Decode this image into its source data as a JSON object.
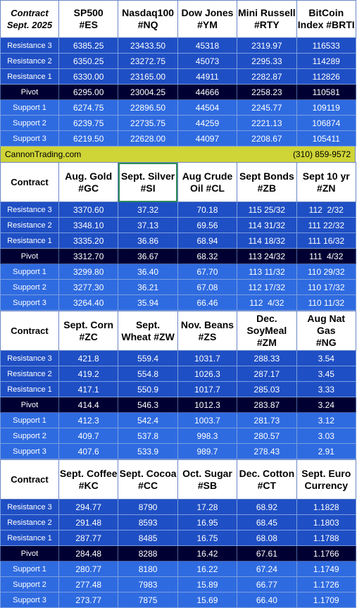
{
  "banner": {
    "site": "CannonTrading.com",
    "phone": "(310) 859-9572"
  },
  "sections": [
    {
      "label": [
        "Contract",
        "Sept. 2025"
      ],
      "italic": true,
      "headers": [
        [
          "SP500",
          "#ES"
        ],
        [
          "Nasdaq100",
          "#NQ"
        ],
        [
          "Dow Jones",
          "#YM"
        ],
        [
          "Mini Russell",
          "#RTY"
        ],
        [
          "BitCoin",
          "Index #BRTI"
        ]
      ],
      "rows": [
        {
          "label": "Resistance 3",
          "kind": "res",
          "values": [
            "6385.25",
            "23433.50",
            "45318",
            "2319.97",
            "116533"
          ]
        },
        {
          "label": "Resistance 2",
          "kind": "res",
          "values": [
            "6350.25",
            "23272.75",
            "45073",
            "2295.33",
            "114289"
          ]
        },
        {
          "label": "Resistance 1",
          "kind": "res",
          "values": [
            "6330.00",
            "23165.00",
            "44911",
            "2282.87",
            "112826"
          ]
        },
        {
          "label": "Pivot",
          "kind": "piv",
          "values": [
            "6295.00",
            "23004.25",
            "44666",
            "2258.23",
            "110581"
          ]
        },
        {
          "label": "Support 1",
          "kind": "sup",
          "values": [
            "6274.75",
            "22896.50",
            "44504",
            "2245.77",
            "109119"
          ]
        },
        {
          "label": "Support 2",
          "kind": "sup",
          "values": [
            "6239.75",
            "22735.75",
            "44259",
            "2221.13",
            "106874"
          ]
        },
        {
          "label": "Support 3",
          "kind": "sup",
          "values": [
            "6219.50",
            "22628.00",
            "44097",
            "2208.67",
            "105411"
          ]
        }
      ]
    },
    {
      "label": [
        "Contract"
      ],
      "italic": false,
      "highlight": 1,
      "headers": [
        [
          "Aug. Gold",
          "#GC"
        ],
        [
          "Sept. Silver",
          "#SI"
        ],
        [
          "Aug Crude",
          "Oil #CL"
        ],
        [
          "Sept Bonds",
          "#ZB"
        ],
        [
          "Sept 10 yr",
          "#ZN"
        ]
      ],
      "rows": [
        {
          "label": "Resistance 3",
          "kind": "res",
          "values": [
            "3370.60",
            "37.32",
            "70.18",
            "115 25/32",
            "112  2/32"
          ]
        },
        {
          "label": "Resistance 2",
          "kind": "res",
          "values": [
            "3348.10",
            "37.13",
            "69.56",
            "114 31/32",
            "111 22/32"
          ]
        },
        {
          "label": "Resistance 1",
          "kind": "res",
          "values": [
            "3335.20",
            "36.86",
            "68.94",
            "114 18/32",
            "111 16/32"
          ]
        },
        {
          "label": "Pivot",
          "kind": "piv",
          "values": [
            "3312.70",
            "36.67",
            "68.32",
            "113 24/32",
            "111  4/32"
          ]
        },
        {
          "label": "Support 1",
          "kind": "sup",
          "values": [
            "3299.80",
            "36.40",
            "67.70",
            "113 11/32",
            "110 29/32"
          ]
        },
        {
          "label": "Support 2",
          "kind": "sup",
          "values": [
            "3277.30",
            "36.21",
            "67.08",
            "112 17/32",
            "110 17/32"
          ]
        },
        {
          "label": "Support 3",
          "kind": "sup",
          "values": [
            "3264.40",
            "35.94",
            "66.46",
            "112  4/32",
            "110 11/32"
          ]
        }
      ]
    },
    {
      "label": [
        "Contract"
      ],
      "italic": false,
      "headers": [
        [
          "Sept. Corn",
          "#ZC"
        ],
        [
          "Sept.",
          "Wheat #ZW"
        ],
        [
          "Nov. Beans",
          "#ZS"
        ],
        [
          "Dec.",
          "SoyMeal",
          "#ZM"
        ],
        [
          "Aug Nat Gas",
          "#NG"
        ]
      ],
      "rows": [
        {
          "label": "Resistance 3",
          "kind": "res",
          "values": [
            "421.8",
            "559.4",
            "1031.7",
            "288.33",
            "3.54"
          ]
        },
        {
          "label": "Resistance 2",
          "kind": "res",
          "values": [
            "419.2",
            "554.8",
            "1026.3",
            "287.17",
            "3.45"
          ]
        },
        {
          "label": "Resistance 1",
          "kind": "res",
          "values": [
            "417.1",
            "550.9",
            "1017.7",
            "285.03",
            "3.33"
          ]
        },
        {
          "label": "Pivot",
          "kind": "piv",
          "values": [
            "414.4",
            "546.3",
            "1012.3",
            "283.87",
            "3.24"
          ]
        },
        {
          "label": "Support 1",
          "kind": "sup",
          "values": [
            "412.3",
            "542.4",
            "1003.7",
            "281.73",
            "3.12"
          ]
        },
        {
          "label": "Support 2",
          "kind": "sup",
          "values": [
            "409.7",
            "537.8",
            "998.3",
            "280.57",
            "3.03"
          ]
        },
        {
          "label": "Support 3",
          "kind": "sup",
          "values": [
            "407.6",
            "533.9",
            "989.7",
            "278.43",
            "2.91"
          ]
        }
      ]
    },
    {
      "label": [
        "Contract"
      ],
      "italic": false,
      "headers": [
        [
          "Sept. Coffee",
          "#KC"
        ],
        [
          "Sept. Cocoa",
          "#CC"
        ],
        [
          "Oct. Sugar",
          "#SB"
        ],
        [
          "Dec. Cotton",
          "#CT"
        ],
        [
          "Sept. Euro",
          "Currency"
        ]
      ],
      "rows": [
        {
          "label": "Resistance 3",
          "kind": "res",
          "values": [
            "294.77",
            "8790",
            "17.28",
            "68.92",
            "1.1828"
          ]
        },
        {
          "label": "Resistance 2",
          "kind": "res",
          "values": [
            "291.48",
            "8593",
            "16.95",
            "68.45",
            "1.1803"
          ]
        },
        {
          "label": "Resistance 1",
          "kind": "res",
          "values": [
            "287.77",
            "8485",
            "16.75",
            "68.08",
            "1.1788"
          ]
        },
        {
          "label": "Pivot",
          "kind": "piv",
          "values": [
            "284.48",
            "8288",
            "16.42",
            "67.61",
            "1.1766"
          ]
        },
        {
          "label": "Support 1",
          "kind": "sup",
          "values": [
            "280.77",
            "8180",
            "16.22",
            "67.24",
            "1.1749"
          ]
        },
        {
          "label": "Support 2",
          "kind": "sup",
          "values": [
            "277.48",
            "7983",
            "15.89",
            "66.77",
            "1.1726"
          ]
        },
        {
          "label": "Support 3",
          "kind": "sup",
          "values": [
            "273.77",
            "7875",
            "15.69",
            "66.40",
            "1.1709"
          ]
        }
      ]
    }
  ]
}
